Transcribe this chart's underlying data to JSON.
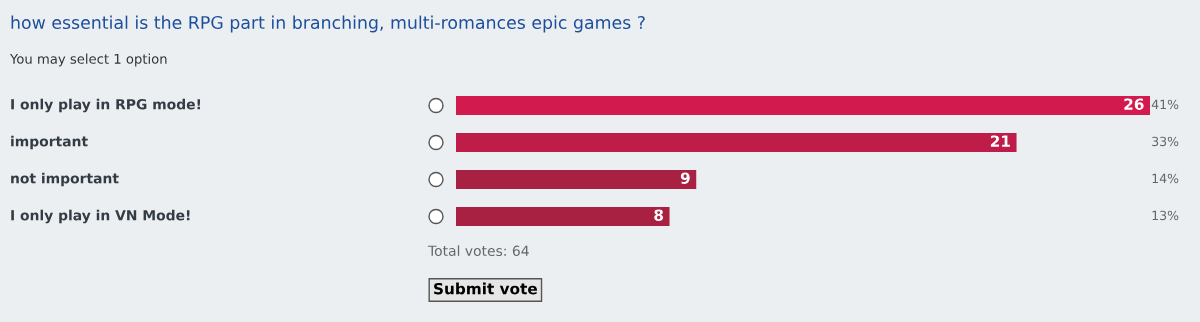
{
  "chart_data": {
    "type": "bar",
    "orientation": "horizontal",
    "title": "how essential is the RPG part in branching, multi-romances epic games ?",
    "subtitle": "You may select 1 option",
    "categories": [
      "I only play in RPG mode!",
      "important",
      "not important",
      "I only play in VN Mode!"
    ],
    "values": [
      26,
      21,
      9,
      8
    ],
    "colors": [
      "#d21a4f",
      "#bd1d48",
      "#a82142",
      "#a82142"
    ],
    "data_labels": true,
    "annotations": [
      "41%",
      "33%",
      "14%",
      "13%",
      "Total votes: 64",
      "Submit vote"
    ]
  }
}
